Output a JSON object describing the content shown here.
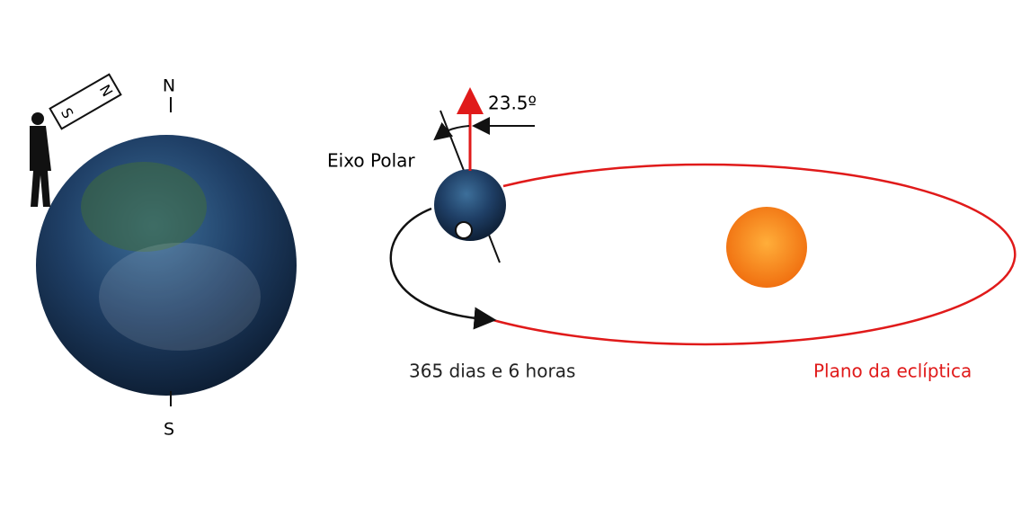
{
  "compass": {
    "north": "N",
    "south": "S"
  },
  "magnet": {
    "south": "S",
    "north": "N"
  },
  "tilt_angle": "23.5º",
  "axis_label": "Eixo Polar",
  "orbit_period": "365 dias e 6 horas",
  "ecliptic_label": "Plano da eclíptica"
}
